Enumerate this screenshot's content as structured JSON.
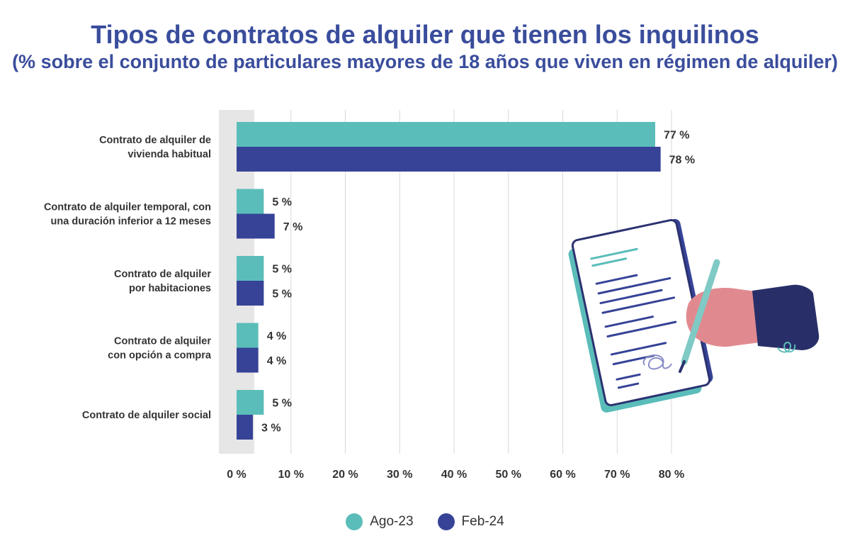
{
  "title": "Tipos de contratos de alquiler que tienen los inquilinos",
  "subtitle": "(% sobre el conjunto de particulares mayores de 18 años que viven en régimen de alquiler)",
  "colors": {
    "title": "#3a4d9c",
    "ago23": "#5bbdb9",
    "feb24": "#364397",
    "grid": "#d9d9d9",
    "zero_band": "#e6e6e6"
  },
  "illustration": {
    "icon": "contract-signing-hand-icon"
  },
  "chart_data": {
    "type": "bar",
    "orientation": "horizontal",
    "title": "Tipos de contratos de alquiler que tienen los inquilinos",
    "subtitle": "(% sobre el conjunto de particulares mayores de 18 años que viven en régimen de alquiler)",
    "categories": [
      [
        "Contrato de alquiler de",
        "vivienda habitual"
      ],
      [
        "Contrato de alquiler temporal, con",
        "una duración inferior a 12 meses"
      ],
      [
        "Contrato de alquiler",
        "por habitaciones"
      ],
      [
        "Contrato de alquiler",
        "con opción a compra"
      ],
      [
        "Contrato de alquiler social"
      ]
    ],
    "series": [
      {
        "name": "Ago-23",
        "color": "#5bbdb9",
        "values": [
          77,
          5,
          5,
          4,
          5
        ],
        "labels": [
          "77 %",
          "5 %",
          "5 %",
          "4 %",
          "5 %"
        ]
      },
      {
        "name": "Feb-24",
        "color": "#364397",
        "values": [
          78,
          7,
          5,
          4,
          3
        ],
        "labels": [
          "78 %",
          "7 %",
          "5 %",
          "4 %",
          "3 %"
        ]
      }
    ],
    "xlim": [
      0,
      80
    ],
    "xticks": [
      0,
      10,
      20,
      30,
      40,
      50,
      60,
      70,
      80
    ],
    "xtick_labels": [
      "0 %",
      "10 %",
      "20 %",
      "30 %",
      "40 %",
      "50 %",
      "60 %",
      "70 %",
      "80 %"
    ],
    "grid": true,
    "legend_position": "bottom-center"
  }
}
